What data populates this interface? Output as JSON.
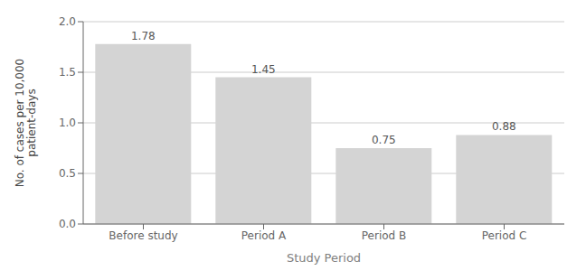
{
  "chart_data": {
    "type": "bar",
    "categories": [
      "Before study",
      "Period A",
      "Period B",
      "Period C"
    ],
    "values": [
      1.78,
      1.45,
      0.75,
      0.88
    ],
    "color": "#d4d4d4",
    "xlabel": "Study Period",
    "ylabel": "No. of cases per 10,000\npatient-days",
    "ylim": [
      0,
      2.0
    ],
    "yticks": [
      {
        "value": 0,
        "label": "0.0"
      },
      0.5,
      {
        "value": 1.0,
        "label": "1.0"
      },
      1.5,
      {
        "value": 2.0,
        "label": "2.0"
      }
    ],
    "grid": true,
    "data_labels": true
  }
}
